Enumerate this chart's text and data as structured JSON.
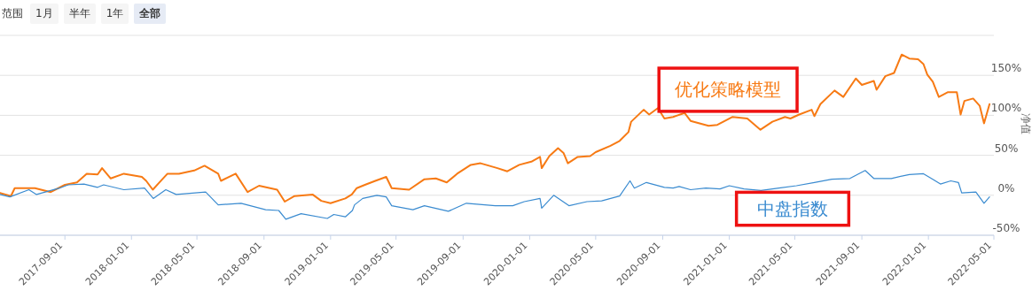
{
  "chart_data": {
    "type": "line",
    "ylabel": "净值",
    "annotations": [
      "范围",
      "1月",
      "半年",
      "1年",
      "全部"
    ],
    "xlim": [
      "2017-05-05",
      "2022-05-01"
    ],
    "ylim": [
      -50,
      200
    ],
    "xticks": [
      "2017-09-01",
      "2018-01-01",
      "2018-05-01",
      "2018-09-01",
      "2019-01-01",
      "2019-05-01",
      "2019-09-01",
      "2020-01-01",
      "2020-05-01",
      "2020-09-01",
      "2021-01-01",
      "2021-05-01",
      "2021-09-01",
      "2022-01-01",
      "2022-05-01"
    ],
    "yticks": [
      {
        "value": -50,
        "label": "-50%"
      },
      {
        "value": 0,
        "label": "0%"
      },
      {
        "value": 50,
        "label": "50%"
      },
      {
        "value": 100,
        "label": "100%"
      },
      {
        "value": 150,
        "label": "150%"
      },
      {
        "value": 200,
        "label": null
      }
    ],
    "grid": "y",
    "line_style": "solid",
    "marker": "none",
    "series": [
      {
        "name": "优化策略模型",
        "color": "#f77a14",
        "x": [
          "2017-05-05",
          "2017-05-25",
          "2017-06-01",
          "2017-07-08",
          "2017-08-06",
          "2017-09-01",
          "2017-09-23",
          "2017-10-11",
          "2017-10-31",
          "2017-11-08",
          "2017-11-24",
          "2017-12-18",
          "2018-01-20",
          "2018-01-28",
          "2018-02-09",
          "2018-02-21",
          "2018-03-08",
          "2018-03-29",
          "2018-04-26",
          "2018-05-15",
          "2018-06-09",
          "2018-06-14",
          "2018-07-11",
          "2018-08-02",
          "2018-08-23",
          "2018-09-25",
          "2018-10-09",
          "2018-10-27",
          "2018-11-29",
          "2018-12-15",
          "2019-01-01",
          "2019-01-28",
          "2019-02-09",
          "2019-02-18",
          "2019-03-05",
          "2019-03-24",
          "2019-04-13",
          "2019-04-23",
          "2019-05-25",
          "2019-06-22",
          "2019-07-13",
          "2019-08-02",
          "2019-08-21",
          "2019-09-15",
          "2019-10-03",
          "2019-11-03",
          "2019-11-21",
          "2019-12-13",
          "2020-01-04",
          "2020-01-20",
          "2020-01-23",
          "2020-02-06",
          "2020-02-22",
          "2020-03-03",
          "2020-03-11",
          "2020-03-29",
          "2020-04-21",
          "2020-05-01",
          "2020-05-28",
          "2020-06-14",
          "2020-06-30",
          "2020-07-05",
          "2020-07-28",
          "2020-08-07",
          "2020-08-23",
          "2020-09-04",
          "2020-09-20",
          "2020-10-11",
          "2020-10-22",
          "2020-11-24",
          "2020-12-10",
          "2021-01-07",
          "2021-02-03",
          "2021-02-27",
          "2021-03-21",
          "2021-04-13",
          "2021-04-23",
          "2021-05-09",
          "2021-06-01",
          "2021-06-06",
          "2021-06-17",
          "2021-07-13",
          "2021-07-29",
          "2021-08-21",
          "2021-09-01",
          "2021-09-23",
          "2021-09-28",
          "2021-10-14",
          "2021-10-30",
          "2021-11-13",
          "2021-11-27",
          "2021-12-13",
          "2021-12-23",
          "2021-12-30",
          "2022-01-09",
          "2022-01-20",
          "2022-02-06",
          "2022-02-22",
          "2022-03-01",
          "2022-03-08",
          "2022-03-24",
          "2022-04-05",
          "2022-04-13",
          "2022-04-23"
        ],
        "values": [
          3,
          -1,
          9,
          9,
          4,
          13,
          16,
          27,
          26,
          34,
          21,
          27,
          23,
          18,
          7,
          16,
          27,
          27,
          31,
          37,
          27,
          18,
          27,
          4,
          12,
          7,
          -8,
          -1,
          1,
          -7,
          -10,
          -4,
          1,
          9,
          13,
          18,
          23,
          9,
          7,
          20,
          21,
          16,
          27,
          38,
          40,
          34,
          30,
          38,
          42,
          48,
          34,
          49,
          59,
          53,
          40,
          48,
          49,
          54,
          62,
          68,
          79,
          92,
          107,
          101,
          109,
          96,
          98,
          103,
          93,
          87,
          88,
          98,
          96,
          82,
          92,
          98,
          96,
          101,
          107,
          99,
          114,
          131,
          123,
          146,
          138,
          143,
          132,
          149,
          153,
          176,
          171,
          170,
          164,
          151,
          142,
          123,
          129,
          129,
          101,
          118,
          121,
          112,
          90,
          114
        ]
      },
      {
        "name": "中盘指数",
        "color": "#3a8bd0",
        "x": [
          "2017-05-05",
          "2017-05-23",
          "2017-06-27",
          "2017-07-11",
          "2017-08-22",
          "2017-09-07",
          "2017-10-06",
          "2017-10-31",
          "2017-11-11",
          "2017-12-18",
          "2018-01-25",
          "2018-02-10",
          "2018-03-05",
          "2018-03-24",
          "2018-05-17",
          "2018-06-09",
          "2018-07-21",
          "2018-09-04",
          "2018-09-28",
          "2018-10-11",
          "2018-11-08",
          "2018-12-26",
          "2019-01-07",
          "2019-01-28",
          "2019-02-10",
          "2019-02-14",
          "2019-03-01",
          "2019-03-27",
          "2019-04-13",
          "2019-04-23",
          "2019-06-01",
          "2019-06-22",
          "2019-08-05",
          "2019-09-07",
          "2019-10-30",
          "2019-12-01",
          "2019-12-22",
          "2020-01-20",
          "2020-01-23",
          "2020-02-14",
          "2020-03-13",
          "2020-04-15",
          "2020-05-12",
          "2020-06-14",
          "2020-07-03",
          "2020-07-11",
          "2020-08-02",
          "2020-09-04",
          "2020-09-20",
          "2020-10-01",
          "2020-10-22",
          "2020-11-19",
          "2020-12-15",
          "2021-01-01",
          "2021-01-28",
          "2021-02-28",
          "2021-04-02",
          "2021-05-04",
          "2021-06-06",
          "2021-07-08",
          "2021-08-10",
          "2021-09-07",
          "2021-09-23",
          "2021-10-25",
          "2021-11-27",
          "2021-12-23",
          "2022-01-09",
          "2022-01-23",
          "2022-02-11",
          "2022-02-25",
          "2022-03-03",
          "2022-03-29",
          "2022-04-13",
          "2022-04-23"
        ],
        "values": [
          1,
          -2,
          7,
          1,
          9,
          13,
          14,
          10,
          13,
          7,
          9,
          -4,
          7,
          1,
          4,
          -12,
          -10,
          -18,
          -19,
          -30,
          -23,
          -29,
          -24,
          -27,
          -19,
          -12,
          -4,
          0,
          -2,
          -13,
          -18,
          -13,
          -20,
          -10,
          -13,
          -13,
          -8,
          -4,
          -16,
          0,
          -13,
          -8,
          -7,
          -1,
          18,
          9,
          16,
          10,
          9,
          11,
          7,
          9,
          8,
          12,
          8,
          6,
          9,
          12,
          16,
          20,
          21,
          31,
          21,
          21,
          26,
          27,
          20,
          14,
          18,
          16,
          3,
          4,
          -10,
          -2
        ]
      }
    ]
  }
}
